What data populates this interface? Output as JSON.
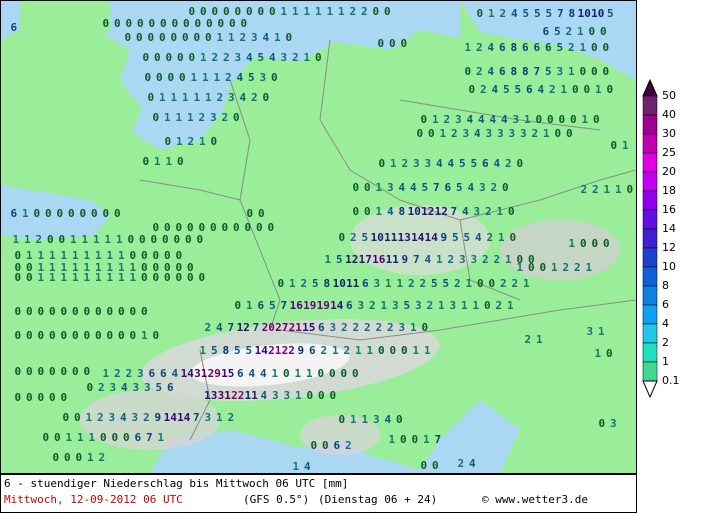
{
  "map": {
    "title": "6 - stuendiger Niederschlag bis Mittwoch 06 UTC [mm]",
    "date": "Mittwoch, 12-09-2012  06 UTC",
    "model": "(GFS 0.5°)",
    "run": "(Dienstag 06 + 24)",
    "source": "© www.wetter3.de",
    "legend": {
      "values": [
        50,
        40,
        30,
        25,
        20,
        18,
        16,
        14,
        12,
        10,
        8,
        6,
        4,
        2,
        1,
        0.1
      ],
      "colors": [
        "#702070",
        "#a00090",
        "#c000b0",
        "#e000e0",
        "#c000f0",
        "#9000f0",
        "#6010e0",
        "#4020d0",
        "#2040d0",
        "#1060d8",
        "#1080e0",
        "#10a0f0",
        "#20c8e8",
        "#20e0c0",
        "#40d890"
      ],
      "top_color": "#400040",
      "bottom_color": "#ffffff"
    },
    "zero_color": "#0a5a2a",
    "rows": [
      [
        0,
        0,
        0,
        0,
        0,
        0,
        0,
        0,
        1,
        1,
        1,
        1,
        1,
        1,
        2,
        2,
        0,
        0
      ],
      [
        0,
        1,
        2,
        4,
        5,
        5,
        5,
        7,
        8,
        10,
        10,
        5
      ],
      [
        0,
        0,
        0,
        0,
        0,
        0,
        0,
        0,
        0,
        0,
        0,
        0,
        0
      ],
      [
        6
      ],
      [
        0,
        0,
        0,
        0,
        0,
        0,
        0,
        0,
        1,
        1,
        2,
        3,
        4,
        1,
        0
      ],
      [
        6,
        5,
        2,
        1,
        0,
        0
      ],
      [
        0,
        0,
        0
      ],
      [
        1,
        2,
        4,
        6,
        8,
        6,
        6,
        6,
        5,
        2,
        1,
        0,
        0
      ],
      [
        0,
        0,
        0,
        0,
        0,
        1,
        2,
        2,
        3,
        4,
        5,
        4,
        3,
        2,
        1,
        0
      ],
      [
        0,
        2,
        4,
        6,
        8,
        8,
        7,
        5,
        3,
        1,
        0,
        0,
        0
      ],
      [
        0,
        0,
        0,
        0,
        1,
        1,
        1,
        2,
        4,
        5,
        3,
        0
      ],
      [
        0,
        2,
        4,
        5,
        5,
        6,
        4,
        2,
        1,
        0,
        0,
        1,
        0
      ],
      [
        0,
        1,
        1,
        1,
        1,
        1,
        2,
        3,
        4,
        2,
        0
      ],
      [
        0,
        1,
        2,
        3,
        4,
        4,
        4,
        4,
        3,
        1,
        0,
        0,
        0,
        0,
        1,
        0
      ],
      [
        0,
        1,
        1,
        1,
        2,
        3,
        2,
        0
      ],
      [
        0,
        0,
        1,
        2,
        3,
        4,
        3,
        3,
        3,
        3,
        2,
        1,
        0,
        0
      ],
      [
        0,
        1,
        2,
        1,
        0
      ],
      [
        0,
        1
      ],
      [
        0,
        1,
        2,
        3,
        3,
        4,
        4,
        5,
        5,
        6,
        4,
        2,
        0
      ],
      [
        0,
        1,
        1,
        0
      ],
      [
        0,
        0,
        1,
        3,
        4,
        4,
        5,
        7,
        6,
        5,
        4,
        3,
        2,
        0
      ],
      [
        2,
        2,
        1,
        1,
        0
      ],
      [
        0,
        0,
        1,
        4,
        8,
        10,
        12,
        12,
        7,
        4,
        3,
        2,
        1,
        0
      ],
      [
        6,
        1,
        0,
        0,
        0,
        0,
        0,
        0,
        0,
        0
      ],
      [
        0,
        0
      ],
      [
        0,
        0,
        0,
        0,
        0,
        0,
        0,
        0,
        0,
        0,
        0
      ],
      [
        1,
        1,
        2,
        0,
        0,
        1,
        1,
        1,
        1,
        1,
        0,
        0,
        0,
        0,
        0,
        0,
        0
      ],
      [
        0,
        2,
        5,
        10,
        11,
        13,
        14,
        14,
        9,
        5,
        5,
        4,
        2,
        1,
        0
      ],
      [
        1,
        0,
        0,
        0
      ],
      [
        0,
        1,
        1,
        1,
        1,
        1,
        1,
        1,
        1,
        1,
        0,
        0,
        0,
        0,
        0
      ],
      [
        1,
        5,
        12,
        17,
        16,
        11,
        9,
        7,
        4,
        1,
        2,
        3,
        3,
        2,
        2,
        1,
        0,
        0
      ],
      [
        0,
        0,
        1,
        1,
        1,
        1,
        1,
        1,
        1,
        1,
        1,
        0,
        0,
        0,
        0,
        0
      ],
      [
        1,
        0,
        0,
        1,
        2,
        2,
        1
      ],
      [
        0,
        1,
        2,
        5,
        8,
        10,
        11,
        6,
        3,
        1,
        1,
        2,
        2,
        5,
        5,
        2,
        1,
        0,
        0,
        2,
        2,
        1
      ],
      [
        0,
        0,
        1,
        1,
        1,
        1,
        1,
        1,
        1,
        1,
        1,
        0,
        0,
        0,
        0,
        0,
        0
      ],
      [
        0,
        1,
        6,
        5,
        7,
        16,
        19,
        19,
        14,
        6,
        3,
        2,
        1,
        3,
        5,
        3,
        2,
        1,
        3,
        1,
        1,
        0,
        2,
        1
      ],
      [
        0,
        0,
        0,
        0,
        0,
        0,
        0,
        0,
        0,
        0,
        0,
        0
      ],
      [
        2,
        4,
        7,
        12,
        7,
        20,
        27,
        21,
        15,
        6,
        3,
        2,
        2,
        2,
        2,
        2,
        3,
        1,
        0
      ],
      [
        3,
        1
      ],
      [
        0,
        0,
        0,
        0,
        0,
        0,
        0,
        0,
        0,
        0,
        0,
        1,
        0
      ],
      [
        2,
        1
      ],
      [
        1,
        5,
        8,
        5,
        5,
        14,
        21,
        22,
        9,
        6,
        2,
        1,
        2,
        1,
        1,
        0,
        0,
        0,
        1,
        1
      ],
      [
        1,
        0
      ],
      [
        0,
        0,
        0,
        0,
        0,
        0,
        0
      ],
      [
        1,
        2,
        2,
        3,
        6,
        6,
        4,
        14,
        31,
        29,
        15,
        6,
        4,
        4,
        1,
        0,
        1,
        1,
        0,
        0,
        0,
        0
      ],
      [
        0,
        2,
        3,
        4,
        3,
        3,
        5,
        6
      ],
      [
        13,
        31,
        22,
        11,
        4,
        3,
        3,
        1,
        0,
        0,
        0
      ],
      [
        0,
        0,
        0,
        0,
        0
      ],
      [
        0,
        0,
        1,
        2,
        3,
        4,
        3,
        2,
        9,
        14,
        14,
        7,
        3,
        1,
        2
      ],
      [
        0,
        1,
        1,
        3,
        4,
        0
      ],
      [
        0,
        0,
        1,
        1,
        1,
        0,
        0,
        0,
        6,
        7,
        1
      ],
      [
        0,
        0,
        6,
        2
      ],
      [
        1,
        0,
        0,
        1,
        7
      ],
      [
        0,
        3
      ],
      [
        0,
        0,
        0,
        1,
        2
      ],
      [
        2,
        4
      ],
      [
        1,
        4
      ],
      [
        0,
        0
      ]
    ]
  }
}
